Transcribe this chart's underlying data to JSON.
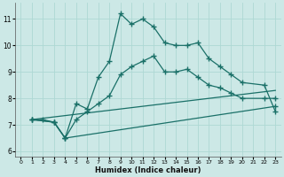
{
  "xlabel": "Humidex (Indice chaleur)",
  "xlim": [
    -0.5,
    23.5
  ],
  "ylim": [
    5.8,
    11.6
  ],
  "yticks": [
    6,
    7,
    8,
    9,
    10,
    11
  ],
  "xticks": [
    0,
    1,
    2,
    3,
    4,
    5,
    6,
    7,
    8,
    9,
    10,
    11,
    12,
    13,
    14,
    15,
    16,
    17,
    18,
    19,
    20,
    21,
    22,
    23
  ],
  "bg_color": "#cce8e6",
  "line_color": "#1a7068",
  "grid_color": "#aed8d4",
  "curve1_x": [
    1,
    2,
    3,
    4,
    5,
    6,
    7,
    8,
    9,
    10,
    11,
    12,
    13,
    14,
    15,
    16,
    17,
    18,
    19,
    20,
    22,
    23
  ],
  "curve1_y": [
    7.2,
    7.2,
    7.1,
    6.5,
    7.8,
    7.6,
    8.8,
    9.4,
    11.2,
    10.8,
    11.0,
    10.7,
    10.1,
    10.0,
    10.0,
    10.1,
    9.5,
    9.2,
    8.9,
    8.6,
    8.5,
    7.5
  ],
  "curve2_x": [
    1,
    3,
    4,
    5,
    6,
    7,
    8,
    9,
    10,
    11,
    12,
    13,
    14,
    15,
    16,
    17,
    18,
    19,
    20,
    22,
    23
  ],
  "curve2_y": [
    7.2,
    7.1,
    6.5,
    7.2,
    7.5,
    7.8,
    8.1,
    8.9,
    9.2,
    9.4,
    9.6,
    9.0,
    9.0,
    9.1,
    8.8,
    8.5,
    8.4,
    8.2,
    8.0,
    8.0,
    8.0
  ],
  "curve3_x": [
    1,
    23
  ],
  "curve3_y": [
    7.2,
    8.3
  ],
  "curve4_x": [
    1,
    3,
    4,
    23
  ],
  "curve4_y": [
    7.2,
    7.1,
    6.5,
    7.7
  ]
}
